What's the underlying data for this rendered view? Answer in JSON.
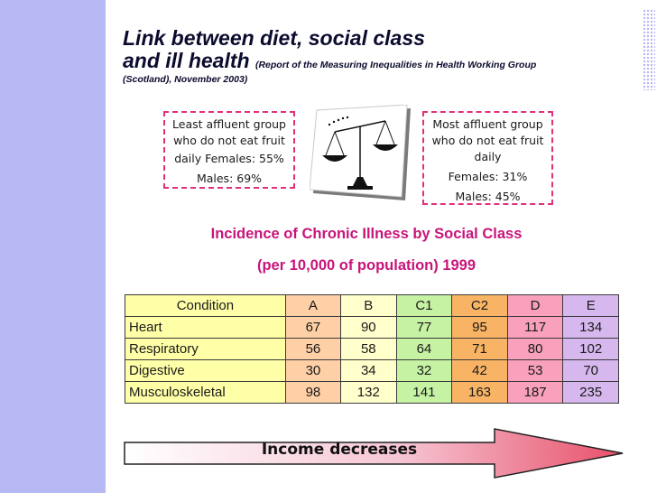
{
  "title": {
    "line1": "Link between diet, social class",
    "line2": "and ill health",
    "source_part1": "(Report of the Measuring Inequalities in Health Working Group",
    "source_part2": "(Scotland), November 2003)"
  },
  "notes": {
    "least_affluent": {
      "line1": "Least affluent group",
      "line2": "who do not eat fruit",
      "line3": "daily Females: 55%",
      "line4": "Males: 69%"
    },
    "most_affluent": {
      "line1": "Most affluent group",
      "line2": "who do not eat fruit",
      "line3": "daily",
      "line4": "Females: 31%",
      "line5": "Males: 45%"
    }
  },
  "section": {
    "title": "Incidence of Chronic Illness by Social Class",
    "subtitle": "(per 10,000 of population) 1999"
  },
  "table": {
    "headers": [
      "Condition",
      "A",
      "B",
      "C1",
      "C2",
      "D",
      "E"
    ],
    "rows": [
      [
        "Heart",
        "67",
        "90",
        "77",
        "95",
        "117",
        "134"
      ],
      [
        "Respiratory",
        "56",
        "58",
        "64",
        "71",
        "80",
        "102"
      ],
      [
        "Digestive",
        "30",
        "34",
        "32",
        "42",
        "53",
        "70"
      ],
      [
        "Musculoskeletal",
        "98",
        "132",
        "141",
        "163",
        "187",
        "235"
      ]
    ]
  },
  "arrow": {
    "label": "Income decreases"
  },
  "icons": {
    "scales": "scales-of-justice-icon"
  },
  "colors": {
    "title": "#0b0b2e",
    "section_title": "#c8147a",
    "dashed_border": "#e0307a",
    "col_condition": "#ffffa8",
    "col_A": "#ffcfa6",
    "col_B": "#ffffcc",
    "col_C1": "#c6f2a4",
    "col_C2": "#f8b464",
    "col_D": "#f8a0bc",
    "col_E": "#d6b8ee"
  }
}
